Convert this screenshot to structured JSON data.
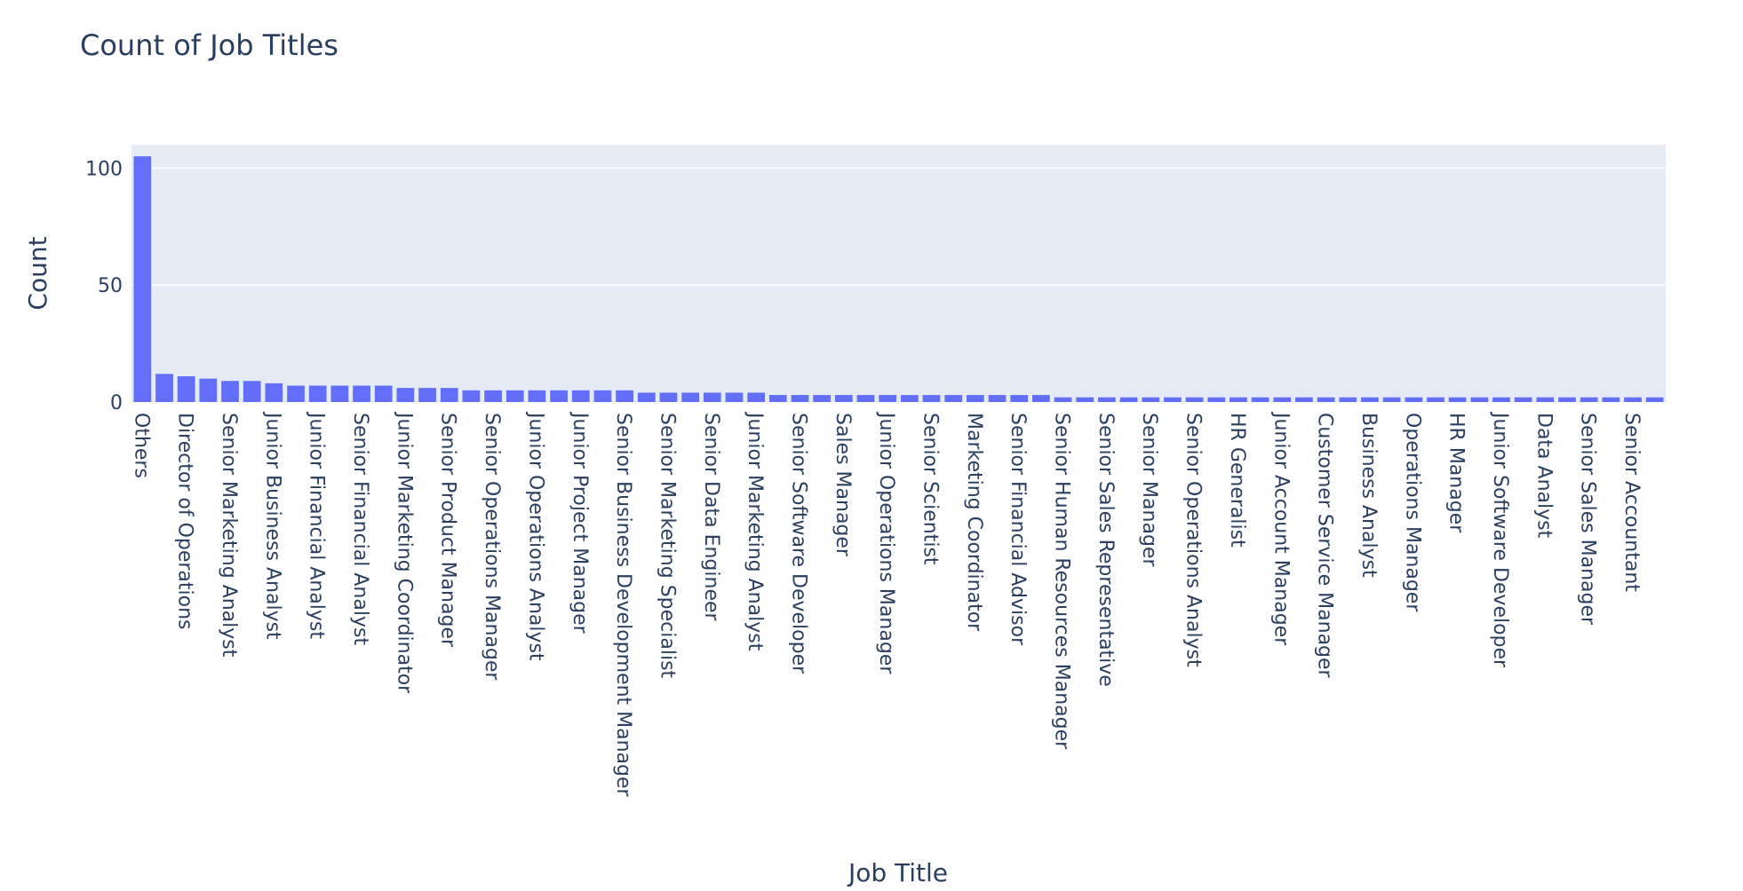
{
  "chart_data": {
    "type": "bar",
    "title": "Count of Job Titles",
    "xlabel": "Job Title",
    "ylabel": "Count",
    "ylim": [
      0,
      110
    ],
    "yticks": [
      0,
      50,
      100
    ],
    "grid": true,
    "colors": {
      "bar": "#636efa",
      "plot_bg": "#e5ecf6",
      "grid": "#ffffff",
      "text": "#2a3f5f"
    },
    "categories": [
      "Others",
      "",
      "Director of Operations",
      "",
      "Senior Marketing Analyst",
      "",
      "Junior Business Analyst",
      "",
      "Junior Financial Analyst",
      "",
      "Senior Financial Analyst",
      "",
      "Junior Marketing Coordinator",
      "",
      "Senior Product Manager",
      "",
      "Senior Operations Manager",
      "",
      "Junior Operations Analyst",
      "",
      "Junior Project Manager",
      "",
      "Senior Business Development Manager",
      "",
      "Senior Marketing Specialist",
      "",
      "Senior Data Engineer",
      "",
      "Junior Marketing Analyst",
      "",
      "Senior Software Developer",
      "",
      "Sales Manager",
      "",
      "Junior Operations Manager",
      "",
      "Senior Scientist",
      "",
      "Marketing Coordinator",
      "",
      "Senior Financial Advisor",
      "",
      "Senior Human Resources Manager",
      "",
      "Senior Sales Representative",
      "",
      "Senior Manager",
      "",
      "Senior Operations Analyst",
      "",
      "HR Generalist",
      "",
      "Junior Account Manager",
      "",
      "Customer Service Manager",
      "",
      "Business Analyst",
      "",
      "Operations Manager",
      "",
      "HR Manager",
      "",
      "Junior Software Developer",
      "",
      "Data Analyst",
      "",
      "Senior Sales Manager",
      "",
      "Senior Accountant",
      ""
    ],
    "values": [
      105,
      12,
      11,
      10,
      9,
      9,
      8,
      7,
      7,
      7,
      7,
      7,
      6,
      6,
      6,
      5,
      5,
      5,
      5,
      5,
      5,
      5,
      5,
      4,
      4,
      4,
      4,
      4,
      4,
      3,
      3,
      3,
      3,
      3,
      3,
      3,
      3,
      3,
      3,
      3,
      3,
      3,
      2,
      2,
      2,
      2,
      2,
      2,
      2,
      2,
      2,
      2,
      2,
      2,
      2,
      2,
      2,
      2,
      2,
      2,
      2,
      2,
      2,
      2,
      2,
      2,
      2,
      2,
      2,
      2
    ]
  }
}
